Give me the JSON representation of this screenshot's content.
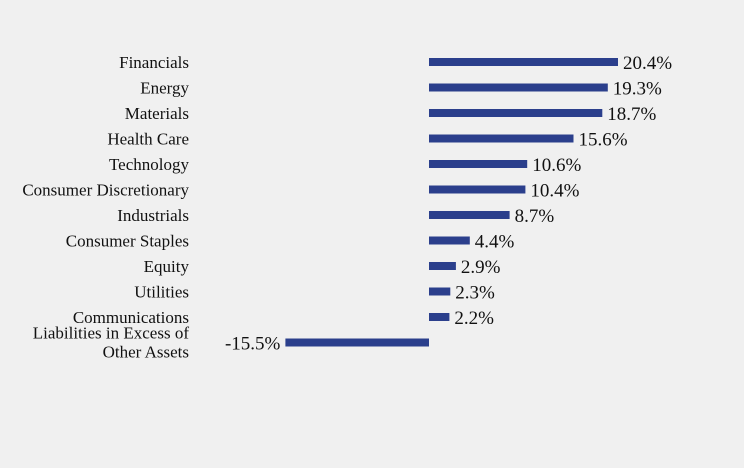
{
  "chart_data": {
    "type": "bar",
    "orientation": "horizontal",
    "categories": [
      "Financials",
      "Energy",
      "Materials",
      "Health Care",
      "Technology",
      "Consumer Discretionary",
      "Industrials",
      "Consumer Staples",
      "Equity",
      "Utilities",
      "Communications",
      "Liabilities in Excess of Other Assets"
    ],
    "values": [
      20.4,
      19.3,
      18.7,
      15.6,
      10.6,
      10.4,
      8.7,
      4.4,
      2.9,
      2.3,
      2.2,
      -15.5
    ],
    "value_labels": [
      "20.4%",
      "19.3%",
      "18.7%",
      "15.6%",
      "10.6%",
      "10.4%",
      "8.7%",
      "4.4%",
      "2.9%",
      "2.3%",
      "2.2%",
      "-15.5%"
    ],
    "xlim": [
      -15.5,
      20.4
    ],
    "bar_color": "#2b3f8c",
    "grid": false,
    "legend": "none"
  }
}
